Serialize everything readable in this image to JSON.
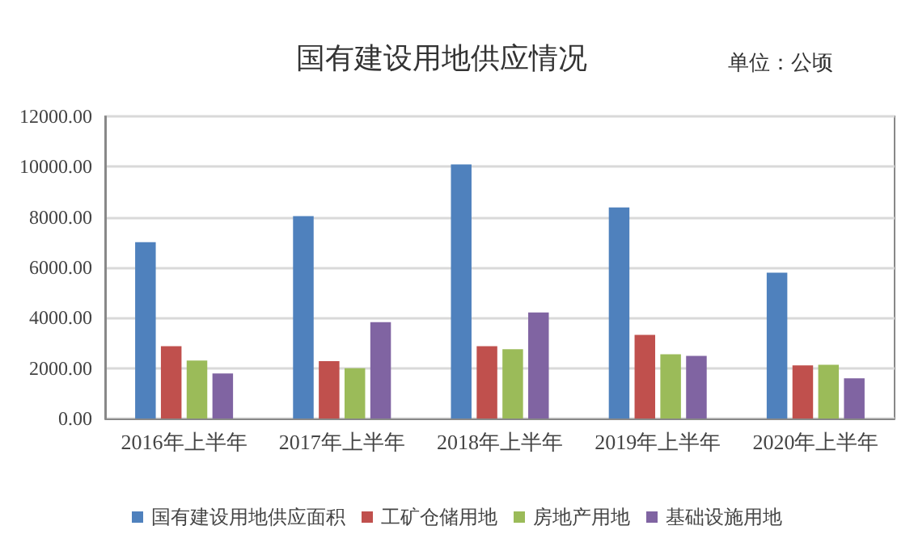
{
  "chart_data": {
    "type": "bar",
    "title": "国有建设用地供应情况",
    "subtitle": "单位：公顷",
    "categories": [
      "2016年上半年",
      "2017年上半年",
      "2018年上半年",
      "2019年上半年",
      "2020年上半年"
    ],
    "series": [
      {
        "name": "国有建设用地供应面积",
        "color": "#4f81bd",
        "values": [
          7000,
          8040,
          10090,
          8380,
          5790
        ]
      },
      {
        "name": "工矿仓储用地",
        "color": "#c0504d",
        "values": [
          2870,
          2280,
          2870,
          3320,
          2110
        ]
      },
      {
        "name": "房地产用地",
        "color": "#9bbb59",
        "values": [
          2300,
          2000,
          2750,
          2550,
          2130
        ]
      },
      {
        "name": "基础设施用地",
        "color": "#8064a2",
        "values": [
          1790,
          3830,
          4210,
          2490,
          1600
        ]
      }
    ],
    "ylim": [
      0,
      12000
    ],
    "yticks": [
      {
        "value": 0,
        "label": "0.00"
      },
      {
        "value": 2000,
        "label": "2000.00"
      },
      {
        "value": 4000,
        "label": "4000.00"
      },
      {
        "value": 6000,
        "label": "6000.00"
      },
      {
        "value": 8000,
        "label": "8000.00"
      },
      {
        "value": 10000,
        "label": "10000.00"
      },
      {
        "value": 12000,
        "label": "12000.00"
      }
    ],
    "grid": "y",
    "legend": "bottom"
  }
}
